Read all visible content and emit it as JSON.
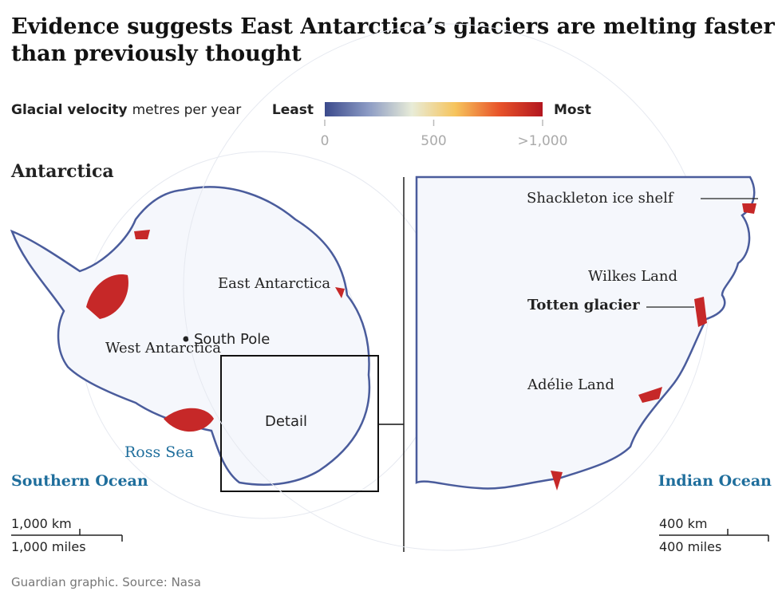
{
  "title": "Evidence suggests East Antarctica’s glaciers are melting faster than previously thought",
  "legend": {
    "label": "Glacial velocity",
    "unit": "metres per year",
    "low": "Least",
    "high": "Most",
    "lim": [
      0,
      1000
    ],
    "ticks": [
      0,
      500,
      {
        "value": 1000,
        "label": ">1,000"
      }
    ],
    "colors": [
      "#3b4a8c",
      "#8c9bc4",
      "#e8ecd8",
      "#f6c45c",
      "#e8542a",
      "#b3161f"
    ]
  },
  "maps": [
    {
      "title": "Antarctica",
      "labels": [
        "East Antarctica",
        "South Pole",
        "West Antarctica",
        "Detail",
        "Ross Sea",
        "Southern Ocean"
      ],
      "scale": [
        "1,000 km",
        "1,000 miles"
      ]
    },
    {
      "labels": [
        "Shackleton ice shelf",
        "Wilkes Land",
        "Totten glacier",
        "Adélie Land",
        "Indian Ocean"
      ],
      "scale": [
        "400 km",
        "400 miles"
      ]
    }
  ],
  "source": "Guardian graphic. Source: Nasa"
}
